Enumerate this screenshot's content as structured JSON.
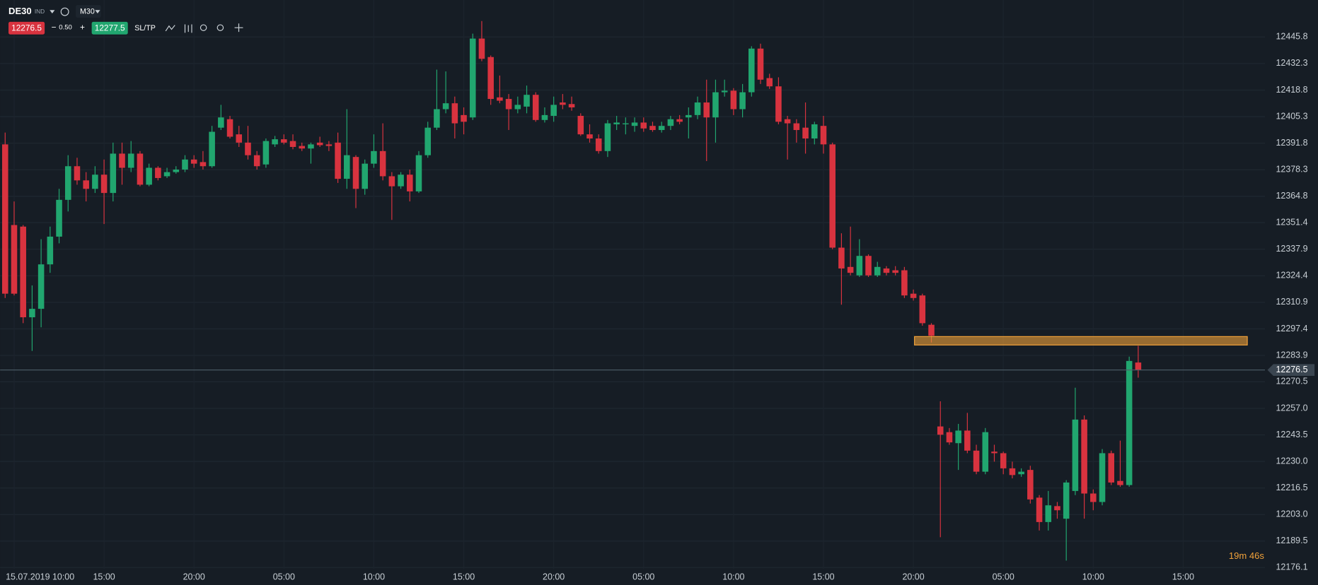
{
  "header": {
    "symbol": "DE30",
    "badge": "IND",
    "timeframe": "M30",
    "bid": "12276.5",
    "spread": "0.50",
    "ask": "12277.5",
    "sltp": "SL/TP"
  },
  "countdown": "19m 46s",
  "chart_data": {
    "type": "candlestick",
    "up_color": "#21a66f",
    "down_color": "#d8333f",
    "grid": true,
    "categories": [
      null,
      "15.07.2019 10:00",
      null,
      null,
      null,
      null,
      null,
      null,
      null,
      null,
      null,
      "15:00",
      null,
      null,
      null,
      null,
      null,
      null,
      null,
      null,
      null,
      "20:00",
      null,
      null,
      null,
      null,
      null,
      null,
      null,
      null,
      null,
      "05:00",
      null,
      null,
      null,
      null,
      null,
      null,
      null,
      null,
      null,
      "10:00",
      null,
      null,
      null,
      null,
      null,
      null,
      null,
      null,
      null,
      "15:00",
      null,
      null,
      null,
      null,
      null,
      null,
      null,
      null,
      null,
      "20:00",
      null,
      null,
      null,
      null,
      null,
      null,
      null,
      null,
      null,
      "05:00",
      null,
      null,
      null,
      null,
      null,
      null,
      null,
      null,
      null,
      "10:00",
      null,
      null,
      null,
      null,
      null,
      null,
      null,
      null,
      null,
      "15:00",
      null,
      null,
      null,
      null,
      null,
      null,
      null,
      null,
      null,
      "20:00",
      null,
      null,
      null,
      null,
      null,
      null,
      null,
      null,
      null,
      "05:00",
      null,
      null,
      null,
      null,
      null,
      null,
      null,
      null,
      null,
      "10:00",
      null,
      null,
      null,
      null,
      null,
      null,
      null,
      null,
      null,
      "15:00"
    ],
    "open": [
      12391.2,
      12350.2,
      12349.4,
      12303.3,
      12307.6,
      12330.2,
      12344.3,
      12363.0,
      12380.1,
      12372.9,
      12368.6,
      12375.8,
      12366.5,
      12386.5,
      12379.3,
      12386.5,
      12370.7,
      12379.3,
      12375.0,
      12377.1,
      12378.4,
      12383.5,
      12382.2,
      12380.1,
      12399.7,
      12404.0,
      12396.3,
      12392.1,
      12385.7,
      12381.0,
      12391.2,
      12393.8,
      12392.9,
      12390.4,
      12389.1,
      12392.1,
      12391.2,
      12392.1,
      12373.7,
      12384.8,
      12368.6,
      12381.4,
      12387.8,
      12375.0,
      12369.9,
      12375.8,
      12367.3,
      12385.7,
      12399.7,
      12409.1,
      12412.1,
      12406.1,
      12404.9,
      12445.0,
      12435.6,
      12415.1,
      12414.3,
      12409.1,
      12410.4,
      12416.4,
      12403.6,
      12405.7,
      12412.5,
      12411.7,
      12405.7,
      12396.3,
      12394.2,
      12387.8,
      12401.4,
      12401.4,
      12400.6,
      12402.3,
      12400.6,
      12398.5,
      12400.6,
      12404.0,
      12404.9,
      12406.1,
      12412.5,
      12404.9,
      12417.7,
      12418.5,
      12409.1,
      12417.7,
      12439.9,
      12424.9,
      12420.7,
      12404.0,
      12401.9,
      12399.7,
      12394.2,
      12400.6,
      12391.2,
      12338.7,
      12328.9,
      12324.6,
      12334.5,
      12324.6,
      12328.1,
      12327.2,
      12327.2,
      12315.3,
      12314.4,
      12299.5,
      12247.8,
      12244.9,
      12239.3,
      12245.7,
      12235.5,
      12224.8,
      12235.0,
      12234.2,
      12226.5,
      12223.5,
      12225.7,
      12211.6,
      12199.2,
      12207.3,
      12200.9,
      12215.0,
      12251.3,
      12213.7,
      12209.4,
      12234.2,
      12220.1,
      12218.0,
      12280.3,
      null,
      null,
      null,
      null,
      null
    ],
    "high": [
      12397.2,
      12362.2,
      12350.2,
      12319.5,
      12343.0,
      12349.4,
      12368.6,
      12385.7,
      12384.4,
      12377.1,
      12380.1,
      12383.5,
      12392.1,
      12392.1,
      12392.9,
      12387.8,
      12381.4,
      12380.1,
      12379.3,
      12380.1,
      12385.7,
      12385.7,
      12387.8,
      12400.6,
      12411.3,
      12405.7,
      12400.6,
      12400.6,
      12387.8,
      12394.2,
      12395.5,
      12396.3,
      12396.3,
      12392.1,
      12392.1,
      12395.1,
      12392.9,
      12397.2,
      12409.1,
      12385.7,
      12383.5,
      12396.3,
      12401.9,
      12377.1,
      12377.1,
      12378.4,
      12387.8,
      12402.7,
      12429.2,
      12428.3,
      12415.5,
      12410.0,
      12447.5,
      12453.9,
      12436.4,
      12426.2,
      12416.8,
      12415.5,
      12421.1,
      12417.7,
      12410.0,
      12415.5,
      12416.8,
      12415.5,
      12407.0,
      12401.4,
      12396.3,
      12403.6,
      12405.7,
      12404.9,
      12404.9,
      12404.9,
      12402.7,
      12402.7,
      12405.7,
      12406.1,
      12410.0,
      12415.5,
      12424.1,
      12424.1,
      12424.1,
      12419.8,
      12421.9,
      12441.1,
      12442.4,
      12427.1,
      12425.3,
      12405.7,
      12404.0,
      12412.5,
      12402.7,
      12405.7,
      12392.1,
      12346.0,
      12349.4,
      12343.0,
      12335.3,
      12331.5,
      12329.3,
      12329.3,
      12328.9,
      12317.4,
      12315.3,
      12300.3,
      12260.6,
      12247.0,
      12249.1,
      12254.7,
      12238.5,
      12247.0,
      12238.5,
      12235.0,
      12229.9,
      12226.5,
      12227.8,
      12212.9,
      12215.0,
      12209.4,
      12220.5,
      12267.5,
      12253.4,
      12215.8,
      12236.3,
      12235.5,
      12240.6,
      12283.3,
      12288.8,
      null,
      null,
      null,
      null,
      null
    ],
    "low": [
      12313.1,
      12314.4,
      12300.3,
      12286.2,
      12298.2,
      12325.9,
      12340.9,
      12357.1,
      12370.7,
      12362.2,
      12366.5,
      12350.7,
      12362.2,
      12370.7,
      12377.1,
      12369.9,
      12369.9,
      12372.9,
      12374.1,
      12376.3,
      12377.1,
      12379.3,
      12378.4,
      12379.3,
      12398.5,
      12394.2,
      12389.9,
      12383.5,
      12378.4,
      12379.3,
      12389.9,
      12391.2,
      12388.7,
      12387.8,
      12381.4,
      12389.9,
      12387.8,
      12371.6,
      12368.6,
      12358.8,
      12365.6,
      12379.3,
      12372.9,
      12352.8,
      12368.6,
      12362.2,
      12366.5,
      12384.4,
      12398.5,
      12407.0,
      12394.2,
      12396.3,
      12403.6,
      12433.5,
      12411.3,
      12412.1,
      12398.5,
      12407.0,
      12407.0,
      12402.7,
      12402.3,
      12402.7,
      12409.1,
      12408.3,
      12395.5,
      12392.1,
      12386.5,
      12384.8,
      12398.5,
      12396.3,
      12397.6,
      12397.6,
      12397.6,
      12397.2,
      12398.5,
      12401.4,
      12394.2,
      12404.0,
      12382.7,
      12392.1,
      12415.5,
      12406.1,
      12404.9,
      12415.5,
      12421.9,
      12419.4,
      12401.4,
      12383.5,
      12392.1,
      12386.5,
      12391.2,
      12386.5,
      12337.9,
      12309.7,
      12324.6,
      12323.8,
      12323.8,
      12323.8,
      12324.6,
      12324.6,
      12313.1,
      12311.8,
      12299.0,
      12290.5,
      12191.5,
      12238.5,
      12225.7,
      12234.2,
      12223.5,
      12223.5,
      12229.9,
      12223.5,
      12221.4,
      12222.2,
      12208.6,
      12194.9,
      12194.9,
      12200.9,
      12179.6,
      12212.9,
      12200.9,
      12205.2,
      12207.7,
      12218.0,
      12217.1,
      12217.1,
      12272.6,
      null,
      null,
      null,
      null,
      null
    ],
    "close": [
      12315.3,
      12315.3,
      12303.3,
      12307.6,
      12330.2,
      12344.3,
      12363.0,
      12380.1,
      12372.9,
      12368.6,
      12375.8,
      12366.5,
      12386.5,
      12379.3,
      12386.5,
      12370.7,
      12379.3,
      12374.1,
      12377.1,
      12378.4,
      12383.5,
      12381.4,
      12380.1,
      12397.6,
      12404.9,
      12395.1,
      12392.1,
      12385.7,
      12380.1,
      12392.9,
      12393.8,
      12392.1,
      12389.9,
      12389.1,
      12391.2,
      12390.8,
      12390.4,
      12373.7,
      12385.7,
      12368.6,
      12381.4,
      12387.8,
      12375.0,
      12369.9,
      12375.8,
      12367.3,
      12385.7,
      12399.7,
      12409.1,
      12412.1,
      12401.9,
      12402.7,
      12445.0,
      12434.7,
      12414.3,
      12413.4,
      12409.1,
      12411.3,
      12416.4,
      12403.6,
      12406.1,
      12411.3,
      12411.3,
      12410.0,
      12396.3,
      12394.2,
      12387.8,
      12401.9,
      12402.3,
      12401.9,
      12402.3,
      12399.3,
      12398.5,
      12400.6,
      12404.0,
      12402.7,
      12406.1,
      12412.5,
      12404.9,
      12417.7,
      12418.5,
      12409.1,
      12417.7,
      12439.9,
      12424.1,
      12420.7,
      12402.7,
      12401.9,
      12398.5,
      12394.2,
      12401.4,
      12391.2,
      12338.7,
      12328.1,
      12325.9,
      12334.5,
      12324.6,
      12328.9,
      12325.9,
      12325.9,
      12314.4,
      12313.1,
      12300.3,
      12293.9,
      12243.6,
      12239.7,
      12245.7,
      12235.5,
      12224.8,
      12244.9,
      12234.2,
      12226.5,
      12223.1,
      12224.8,
      12210.7,
      12199.2,
      12207.7,
      12205.2,
      12219.3,
      12251.3,
      12213.7,
      12209.4,
      12234.2,
      12219.3,
      12218.0,
      12281.1,
      12276.5,
      null,
      null,
      null,
      null,
      null
    ],
    "ylim": [
      12175.3,
      12464.6
    ],
    "yticks": [
      12445.8,
      12432.3,
      12418.8,
      12405.3,
      12391.8,
      12378.3,
      12364.8,
      12351.4,
      12337.9,
      12324.4,
      12310.9,
      12297.4,
      12283.9,
      12270.5,
      {
        "value": 12257,
        "label": "12257.0"
      },
      12243.5,
      {
        "value": 12230,
        "label": "12230.0"
      },
      12216.5,
      {
        "value": 12203,
        "label": "12203.0"
      },
      12189.5,
      12176.1
    ],
    "zone": {
      "low": 12289.2,
      "high": 12293.5,
      "color": "#f0a13a"
    }
  }
}
